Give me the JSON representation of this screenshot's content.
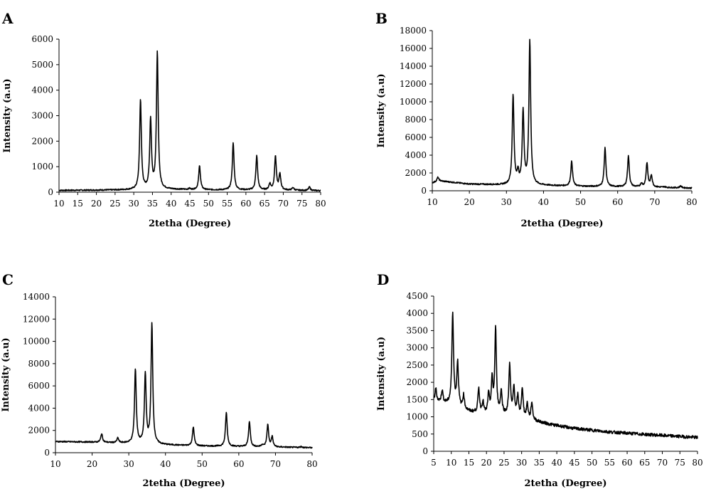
{
  "chart_data": [
    {
      "panel": "A",
      "type": "line",
      "xlabel": "2tetha (Degree)",
      "ylabel": "Intensity (a.u)",
      "xlim": [
        10,
        80
      ],
      "ylim": [
        0,
        6000
      ],
      "xticks": [
        10,
        15,
        20,
        25,
        30,
        35,
        40,
        45,
        50,
        55,
        60,
        65,
        70,
        75,
        80
      ],
      "yticks": [
        0,
        1000,
        2000,
        3000,
        4000,
        5000,
        6000
      ],
      "baseline": {
        "x": [
          10,
          20,
          28,
          40,
          50,
          60,
          70,
          80
        ],
        "y": [
          70,
          80,
          90,
          110,
          90,
          85,
          80,
          60
        ]
      },
      "peaks": [
        {
          "x": 31.8,
          "y": 3600
        },
        {
          "x": 34.5,
          "y": 2820
        },
        {
          "x": 36.3,
          "y": 5450
        },
        {
          "x": 47.6,
          "y": 1030
        },
        {
          "x": 56.6,
          "y": 1920
        },
        {
          "x": 62.9,
          "y": 1420
        },
        {
          "x": 66.4,
          "y": 320
        },
        {
          "x": 67.9,
          "y": 1400
        },
        {
          "x": 69.1,
          "y": 700
        },
        {
          "x": 72.6,
          "y": 180
        },
        {
          "x": 77.0,
          "y": 200
        },
        {
          "x": 44.9,
          "y": 140
        }
      ]
    },
    {
      "panel": "B",
      "type": "line",
      "xlabel": "2tetha (Degree)",
      "ylabel": "Intensity (a.u)",
      "xlim": [
        10,
        80
      ],
      "ylim": [
        0,
        18000
      ],
      "xticks": [
        10,
        20,
        30,
        40,
        50,
        60,
        70,
        80
      ],
      "yticks": [
        0,
        2000,
        4000,
        6000,
        8000,
        10000,
        12000,
        14000,
        16000,
        18000
      ],
      "baseline": {
        "x": [
          10,
          12,
          20,
          30,
          40,
          50,
          60,
          70,
          80
        ],
        "y": [
          900,
          1100,
          750,
          650,
          600,
          500,
          450,
          400,
          300
        ]
      },
      "peaks": [
        {
          "x": 11.5,
          "y": 1500
        },
        {
          "x": 31.8,
          "y": 10700
        },
        {
          "x": 33.1,
          "y": 1900
        },
        {
          "x": 34.5,
          "y": 8900
        },
        {
          "x": 36.3,
          "y": 16800
        },
        {
          "x": 47.6,
          "y": 3300
        },
        {
          "x": 56.6,
          "y": 4800
        },
        {
          "x": 62.9,
          "y": 3900
        },
        {
          "x": 66.4,
          "y": 800
        },
        {
          "x": 67.9,
          "y": 3100
        },
        {
          "x": 69.1,
          "y": 1700
        },
        {
          "x": 72.6,
          "y": 450
        },
        {
          "x": 77.0,
          "y": 550
        }
      ]
    },
    {
      "panel": "C",
      "type": "line",
      "xlabel": "2tetha (Degree)",
      "ylabel": "Intensity (a.u)",
      "xlim": [
        10,
        80
      ],
      "ylim": [
        0,
        14000
      ],
      "xticks": [
        10,
        20,
        30,
        40,
        50,
        60,
        70,
        80
      ],
      "yticks": [
        0,
        2000,
        4000,
        6000,
        8000,
        10000,
        12000,
        14000
      ],
      "baseline": {
        "x": [
          10,
          20,
          30,
          40,
          50,
          60,
          70,
          80
        ],
        "y": [
          1000,
          950,
          850,
          700,
          600,
          550,
          500,
          450
        ]
      },
      "peaks": [
        {
          "x": 22.6,
          "y": 1700
        },
        {
          "x": 27.0,
          "y": 1300
        },
        {
          "x": 31.8,
          "y": 7500
        },
        {
          "x": 34.5,
          "y": 7000
        },
        {
          "x": 36.3,
          "y": 11500
        },
        {
          "x": 47.6,
          "y": 2300
        },
        {
          "x": 56.6,
          "y": 3600
        },
        {
          "x": 62.9,
          "y": 2800
        },
        {
          "x": 66.4,
          "y": 700
        },
        {
          "x": 67.9,
          "y": 2500
        },
        {
          "x": 69.1,
          "y": 1400
        },
        {
          "x": 72.6,
          "y": 500
        },
        {
          "x": 77.0,
          "y": 550
        }
      ]
    },
    {
      "panel": "D",
      "type": "line",
      "xlabel": "2tetha (Degree)",
      "ylabel": "Intensity (a.u)",
      "xlim": [
        5,
        80
      ],
      "ylim": [
        0,
        4500
      ],
      "xticks": [
        5,
        10,
        15,
        20,
        25,
        30,
        35,
        40,
        45,
        50,
        55,
        60,
        65,
        70,
        75,
        80
      ],
      "yticks": [
        0,
        500,
        1000,
        1500,
        2000,
        2500,
        3000,
        3500,
        4000,
        4500
      ],
      "baseline": {
        "x": [
          5,
          10,
          15,
          20,
          25,
          30,
          35,
          38,
          45,
          55,
          65,
          80
        ],
        "y": [
          1450,
          1350,
          1150,
          1050,
          1050,
          950,
          850,
          780,
          660,
          560,
          490,
          400
        ]
      },
      "peaks": [
        {
          "x": 5.6,
          "y": 1800
        },
        {
          "x": 7.4,
          "y": 1750
        },
        {
          "x": 10.4,
          "y": 4000
        },
        {
          "x": 11.8,
          "y": 2550
        },
        {
          "x": 13.5,
          "y": 1600
        },
        {
          "x": 17.8,
          "y": 1800
        },
        {
          "x": 19.0,
          "y": 1400
        },
        {
          "x": 20.6,
          "y": 1600
        },
        {
          "x": 21.6,
          "y": 2000
        },
        {
          "x": 22.6,
          "y": 3500
        },
        {
          "x": 24.2,
          "y": 1700
        },
        {
          "x": 26.6,
          "y": 2500
        },
        {
          "x": 27.8,
          "y": 1800
        },
        {
          "x": 28.9,
          "y": 1550
        },
        {
          "x": 30.2,
          "y": 1800
        },
        {
          "x": 31.6,
          "y": 1350
        },
        {
          "x": 32.9,
          "y": 1400
        }
      ],
      "noise": 45
    }
  ]
}
